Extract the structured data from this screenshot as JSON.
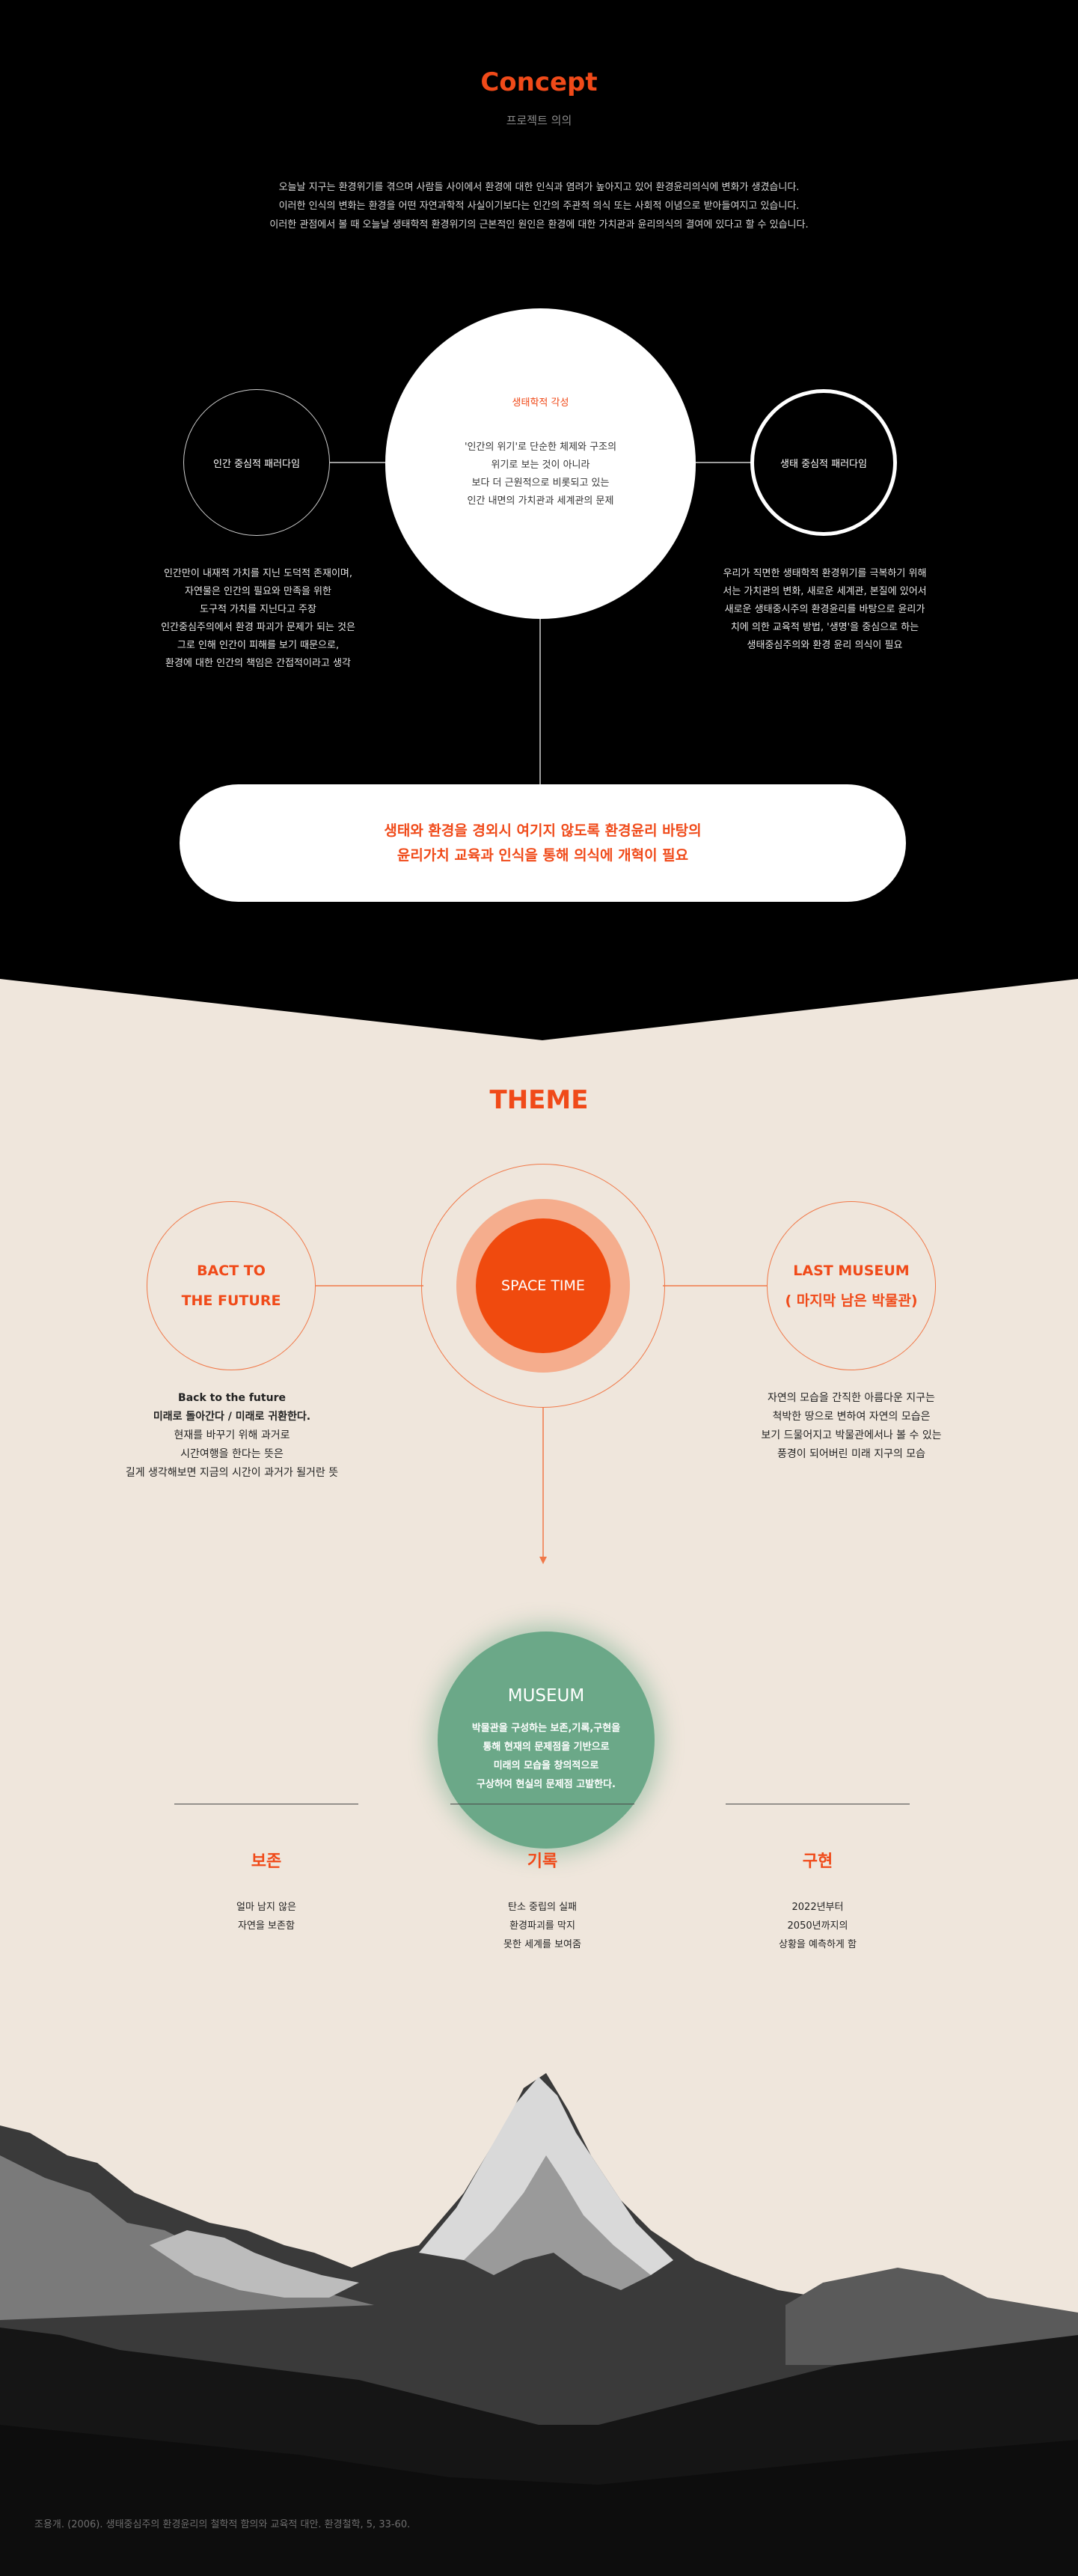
{
  "concept": {
    "title": "Concept",
    "subtitle": "프로젝트 의의",
    "description": [
      "오늘날 지구는 환경위기를 겪으며 사람들 사이에서 환경에 대한 인식과 염려가 높아지고 있어 환경윤리의식에 변화가 생겼습니다.",
      "이러한 인식의 변화는 환경을 어떤 자연과학적 사실이기보다는 인간의 주관적 의식 또는 사회적 이념으로 받아들여지고 있습니다.",
      "이러한 관점에서 볼 때 오늘날 생태학적 환경위기의 근본적인 원인은 환경에 대한 가치관과 윤리의식의 결여에 있다고 할 수 있습니다."
    ],
    "left_circle": "인간 중심적 패러다임",
    "right_circle": "생태 중심적 패러다임",
    "center_heading": "생태학적 각성",
    "center_body": [
      "'인간의 위기'로 단순한 체제와 구조의",
      "위기로 보는 것이 아니라",
      "보다 더 근원적으로 비롯되고 있는",
      "인간 내면의 가치관과 세계관의 문제"
    ],
    "left_text": [
      "인간만이 내재적 가치를 지닌 도덕적 존재이며,",
      "자연물은 인간의 필요와 만족을 위한",
      "도구적 가치를 지닌다고 주장",
      "인간중심주의에서 환경 파괴가 문제가 되는 것은",
      "그로 인해 인간이 피해를 보기 때문으로,",
      "환경에 대한 인간의 책임은 간접적이라고 생각"
    ],
    "right_text": [
      "우리가 직면한 생태학적 환경위기를 극복하기 위해",
      "서는 가치관의 변화, 새로운 세계관, 본질에 있어서",
      "새로운 생태중시주의 환경윤리를 바탕으로 윤리가",
      "치에 의한 교육적 방법, '생명'을 중심으로 하는",
      "생태중심주의와 환경 윤리 의식이 필요"
    ],
    "pill_text": [
      "생태와 환경을 경외시 여기지 않도록 환경윤리 바탕의",
      "윤리가치 교육과 인식을 통해 의식에 개혁이 필요"
    ]
  },
  "theme": {
    "title": "THEME",
    "left_label": [
      "BACT TO",
      "THE FUTURE"
    ],
    "center_label": "SPACE TIME",
    "right_label": [
      "LAST MUSEUM",
      "( 마지막 남은 박물관)"
    ],
    "left_text_bold": [
      "Back to the future",
      "미래로 돌아간다 / 미래로 귀환한다."
    ],
    "left_text": [
      "현재를 바꾸기 위해 과거로",
      "시간여행을 한다는 뜻은",
      "길게 생각해보면 지금의 시간이 과거가 될거란 뜻"
    ],
    "right_text": [
      "자연의 모습을 간직한 아름다운 지구는",
      "척박한 땅으로 변하여 자연의 모습은",
      "보기 드물어지고 박물관에서나 볼 수 있는",
      "풍경이 되어버린 미래 지구의 모습"
    ],
    "museum_title": "MUSEUM",
    "museum_body": [
      "박물관을 구성하는 보존,기록,구현을",
      "통해 현재의 문제점을 기반으로",
      "미래의 모습을 창의적으로",
      "구상하여 현실의 문제점 고발한다."
    ],
    "columns": [
      {
        "head": "보존",
        "lines": [
          "얼마 남지 않은",
          "자연을 보존함"
        ]
      },
      {
        "head": "기록",
        "lines": [
          "탄소 중립의 실패",
          "환경파괴를 막지",
          "못한 세계를 보여줌"
        ]
      },
      {
        "head": "구현",
        "lines": [
          "2022년부터",
          "2050년까지의",
          "상황을 예측하게 함"
        ]
      }
    ]
  },
  "footnote": "조용개. (2006). 생태중심주의 환경윤리의 철학적 함의와 교육적 대안. 환경철학, 5, 33-60.",
  "colors": {
    "accent": "#f04a19",
    "museum_green": "#6ba888",
    "background_beige": "#efe6dc"
  }
}
